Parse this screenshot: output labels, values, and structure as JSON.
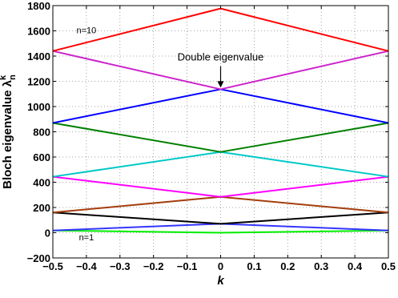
{
  "chart_data": {
    "type": "line",
    "xlabel": "k",
    "ylabel_main": "Bloch eigenvalue ",
    "ylabel_symbol": "λ",
    "ylabel_sub": "n",
    "ylabel_sup": "k",
    "xlim": [
      -0.5,
      0.5
    ],
    "ylim": [
      -200,
      1800
    ],
    "xticks": [
      -0.5,
      -0.4,
      -0.3,
      -0.2,
      -0.1,
      0,
      0.1,
      0.2,
      0.3,
      0.4,
      0.5
    ],
    "xtick_labels": [
      "−0.5",
      "−0.4",
      "−0.3",
      "−0.2",
      "−0.1",
      "0",
      "0.1",
      "0.2",
      "0.3",
      "0.4",
      "0.5"
    ],
    "yticks": [
      -200,
      0,
      200,
      400,
      600,
      800,
      1000,
      1200,
      1400,
      1600,
      1800
    ],
    "ytick_labels": [
      "−200",
      "0",
      "200",
      "400",
      "600",
      "800",
      "1000",
      "1200",
      "1400",
      "1600",
      "1800"
    ],
    "grid": "dotted",
    "x": [
      -0.5,
      0,
      0.5
    ],
    "series": [
      {
        "color": "#00ee00",
        "values": [
          17.8,
          0,
          17.8
        ]
      },
      {
        "color": "#3535ff",
        "values": [
          17.8,
          71,
          17.8
        ]
      },
      {
        "color": "#000000",
        "values": [
          160,
          71,
          160
        ]
      },
      {
        "color": "#a33d0c",
        "values": [
          160,
          284,
          160
        ]
      },
      {
        "color": "#ff00ff",
        "values": [
          444,
          284,
          444
        ]
      },
      {
        "color": "#00c8c8",
        "values": [
          444,
          640,
          444
        ]
      },
      {
        "color": "#008000",
        "values": [
          870,
          640,
          870
        ]
      },
      {
        "color": "#0000ff",
        "values": [
          870,
          1137,
          870
        ]
      },
      {
        "color": "#cc22cc",
        "values": [
          1440,
          1137,
          1440
        ]
      },
      {
        "color": "#ff0000",
        "values": [
          1440,
          1777,
          1440
        ]
      }
    ],
    "annotations": [
      {
        "text": "n=10",
        "x": -0.4,
        "y": 1580
      },
      {
        "text": "n=1",
        "x": -0.4,
        "y": -60
      },
      {
        "text": "Double eigenvalue",
        "x": 0,
        "y": 1365,
        "arrow_to": [
          0,
          1137
        ]
      }
    ]
  }
}
